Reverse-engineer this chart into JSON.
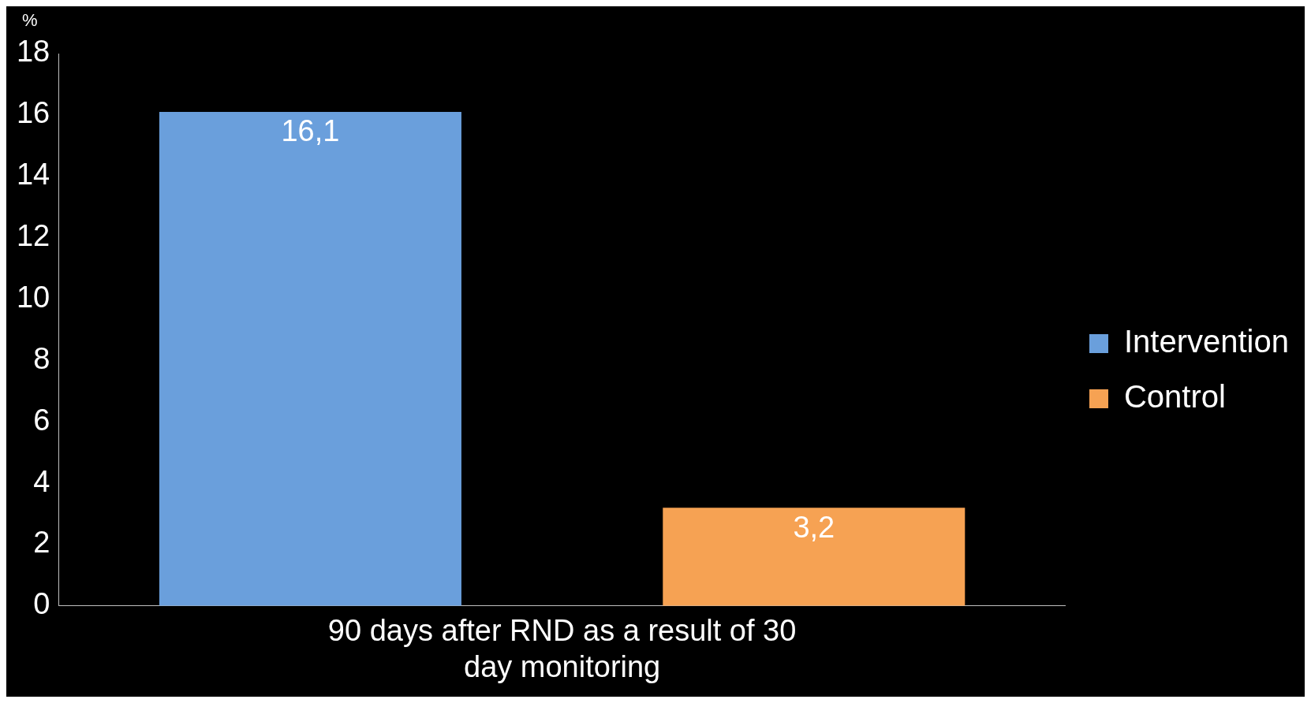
{
  "chart_data": {
    "type": "bar",
    "ylabel": "%",
    "categories": [
      "90 days after RND as a result of 30 day monitoring"
    ],
    "series": [
      {
        "name": "Intervention",
        "color": "#6a9fdc",
        "values": [
          16.1
        ],
        "value_labels": [
          "16,1"
        ]
      },
      {
        "name": "Control",
        "color": "#f6a253",
        "values": [
          3.2
        ],
        "value_labels": [
          "3,2"
        ]
      }
    ],
    "ylim": [
      0,
      18
    ],
    "yticks": [
      0,
      2,
      4,
      6,
      8,
      10,
      12,
      14,
      16,
      18
    ],
    "grid": false,
    "legend": "right"
  }
}
